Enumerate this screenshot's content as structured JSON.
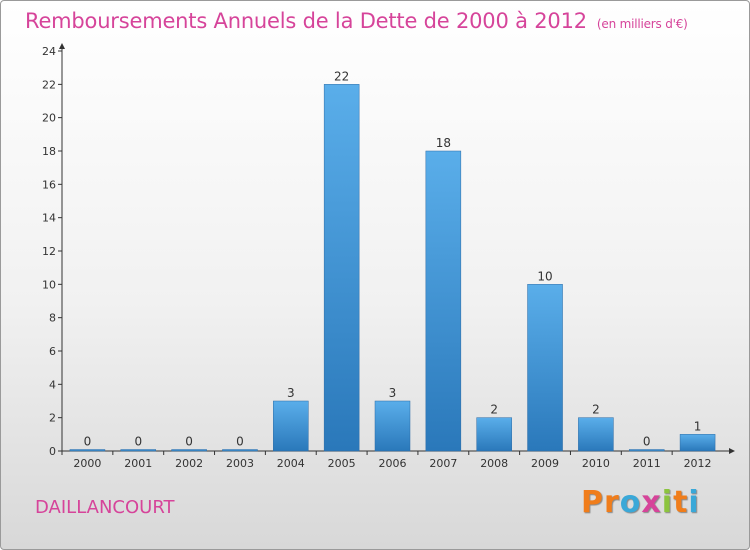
{
  "header": {
    "title": "Remboursements Annuels de la Dette de 2000 à 2012",
    "unit": "(en milliers d'€)"
  },
  "commune": "DAILLANCOURT",
  "brand": {
    "letters": [
      "P",
      "r",
      "o",
      "x",
      "i",
      "t",
      "i"
    ],
    "colors": [
      "#f07d1b",
      "#f07d1b",
      "#3aa8d8",
      "#d6449a",
      "#8cc43f",
      "#f07d1b",
      "#3aa8d8"
    ]
  },
  "colors": {
    "bar_light": "#5aaeea",
    "bar_dark": "#2a78ba",
    "title": "#d6449a"
  },
  "chart_data": {
    "type": "bar",
    "categories": [
      "2000",
      "2001",
      "2002",
      "2003",
      "2004",
      "2005",
      "2006",
      "2007",
      "2008",
      "2009",
      "2010",
      "2011",
      "2012"
    ],
    "values": [
      0,
      0,
      0,
      0,
      3,
      22,
      3,
      18,
      2,
      10,
      2,
      0,
      1
    ],
    "value_labels": [
      "0",
      "0",
      "0",
      "0",
      "3",
      "22",
      "3",
      "18",
      "2",
      "10",
      "2",
      "0",
      "1"
    ],
    "yticks": [
      "0",
      "2",
      "4",
      "6",
      "8",
      "10",
      "12",
      "14",
      "16",
      "18",
      "20",
      "22",
      "24"
    ],
    "ylim": [
      0,
      24
    ],
    "grid": false,
    "legend": "none"
  }
}
